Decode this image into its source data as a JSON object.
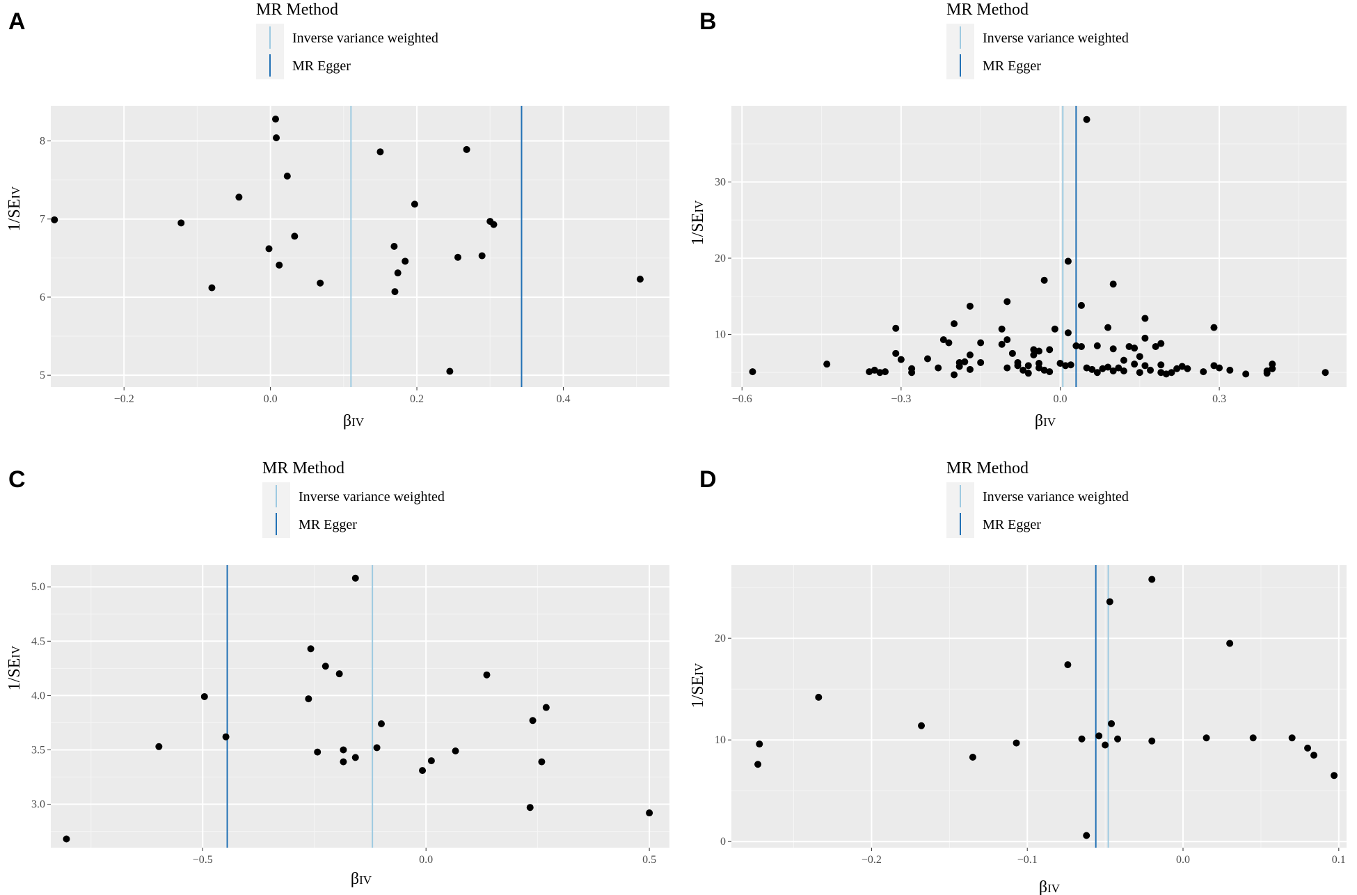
{
  "legend": {
    "title": "MR Method",
    "items": [
      {
        "label": "Inverse variance weighted",
        "color": "#9ecae1"
      },
      {
        "label": "MR Egger",
        "color": "#2171b5"
      }
    ]
  },
  "chart_data": [
    {
      "panel": "A",
      "type": "scatter",
      "xlabel": "βIV",
      "ylabel": "1/SEIV",
      "xlim": [
        -0.3,
        0.545
      ],
      "ylim": [
        4.85,
        8.45
      ],
      "xticks": [
        -0.2,
        0.0,
        0.2,
        0.4
      ],
      "xtick_labels": [
        "−0.2",
        "0.0",
        "0.2",
        "0.4"
      ],
      "yticks": [
        5,
        6,
        7,
        8
      ],
      "ytick_labels": [
        "5",
        "6",
        "7",
        "8"
      ],
      "lines": [
        {
          "method": "Inverse variance weighted",
          "x": 0.11
        },
        {
          "method": "MR Egger",
          "x": 0.343
        }
      ],
      "points": [
        [
          -0.295,
          6.99
        ],
        [
          -0.122,
          6.95
        ],
        [
          -0.08,
          6.12
        ],
        [
          -0.043,
          7.28
        ],
        [
          -0.002,
          6.62
        ],
        [
          0.007,
          8.28
        ],
        [
          0.008,
          8.04
        ],
        [
          0.012,
          6.41
        ],
        [
          0.023,
          7.55
        ],
        [
          0.033,
          6.78
        ],
        [
          0.068,
          6.18
        ],
        [
          0.15,
          7.86
        ],
        [
          0.169,
          6.65
        ],
        [
          0.17,
          6.07
        ],
        [
          0.174,
          6.31
        ],
        [
          0.184,
          6.46
        ],
        [
          0.197,
          7.19
        ],
        [
          0.245,
          5.05
        ],
        [
          0.256,
          6.51
        ],
        [
          0.268,
          7.89
        ],
        [
          0.289,
          6.53
        ],
        [
          0.3,
          6.97
        ],
        [
          0.305,
          6.93
        ],
        [
          0.505,
          6.23
        ]
      ]
    },
    {
      "panel": "B",
      "type": "scatter",
      "xlabel": "βIV",
      "ylabel": "1/SEIV",
      "xlim": [
        -0.62,
        0.54
      ],
      "ylim": [
        3.1,
        40.0
      ],
      "xticks": [
        -0.6,
        -0.3,
        0.0,
        0.3
      ],
      "xtick_labels": [
        "−0.6",
        "−0.3",
        "0.0",
        "0.3"
      ],
      "yticks": [
        10,
        20,
        30
      ],
      "ytick_labels": [
        "10",
        "20",
        "30"
      ],
      "lines": [
        {
          "method": "Inverse variance weighted",
          "x": 0.005
        },
        {
          "method": "MR Egger",
          "x": 0.03
        }
      ],
      "points": [
        [
          -0.58,
          5.1
        ],
        [
          -0.44,
          6.1
        ],
        [
          -0.36,
          5.1
        ],
        [
          -0.35,
          5.3
        ],
        [
          -0.34,
          5.0
        ],
        [
          -0.33,
          5.1
        ],
        [
          -0.31,
          10.8
        ],
        [
          -0.31,
          7.5
        ],
        [
          -0.3,
          6.7
        ],
        [
          -0.28,
          5.0
        ],
        [
          -0.28,
          5.5
        ],
        [
          -0.25,
          6.8
        ],
        [
          -0.23,
          5.6
        ],
        [
          -0.22,
          9.3
        ],
        [
          -0.21,
          8.9
        ],
        [
          -0.2,
          11.4
        ],
        [
          -0.2,
          4.7
        ],
        [
          -0.19,
          6.3
        ],
        [
          -0.19,
          5.8
        ],
        [
          -0.18,
          6.4
        ],
        [
          -0.17,
          13.7
        ],
        [
          -0.17,
          7.3
        ],
        [
          -0.17,
          5.4
        ],
        [
          -0.15,
          8.9
        ],
        [
          -0.15,
          6.3
        ],
        [
          -0.11,
          10.7
        ],
        [
          -0.11,
          8.7
        ],
        [
          -0.1,
          14.3
        ],
        [
          -0.1,
          9.3
        ],
        [
          -0.1,
          5.6
        ],
        [
          -0.09,
          7.5
        ],
        [
          -0.08,
          5.9
        ],
        [
          -0.08,
          6.3
        ],
        [
          -0.07,
          5.3
        ],
        [
          -0.06,
          5.9
        ],
        [
          -0.06,
          4.9
        ],
        [
          -0.05,
          8.0
        ],
        [
          -0.05,
          7.3
        ],
        [
          -0.04,
          7.8
        ],
        [
          -0.04,
          6.2
        ],
        [
          -0.04,
          5.6
        ],
        [
          -0.03,
          17.1
        ],
        [
          -0.03,
          5.3
        ],
        [
          -0.02,
          8.0
        ],
        [
          -0.02,
          5.1
        ],
        [
          -0.01,
          10.7
        ],
        [
          0.0,
          6.2
        ],
        [
          0.01,
          5.9
        ],
        [
          0.015,
          19.6
        ],
        [
          0.015,
          10.2
        ],
        [
          0.02,
          6.0
        ],
        [
          0.03,
          8.5
        ],
        [
          0.04,
          13.8
        ],
        [
          0.04,
          8.4
        ],
        [
          0.05,
          38.2
        ],
        [
          0.05,
          5.6
        ],
        [
          0.06,
          5.4
        ],
        [
          0.07,
          8.5
        ],
        [
          0.07,
          5.0
        ],
        [
          0.08,
          5.5
        ],
        [
          0.09,
          10.9
        ],
        [
          0.09,
          5.7
        ],
        [
          0.1,
          16.6
        ],
        [
          0.1,
          8.1
        ],
        [
          0.1,
          5.2
        ],
        [
          0.11,
          5.6
        ],
        [
          0.12,
          6.6
        ],
        [
          0.12,
          5.2
        ],
        [
          0.13,
          8.4
        ],
        [
          0.14,
          8.2
        ],
        [
          0.14,
          6.1
        ],
        [
          0.15,
          5.0
        ],
        [
          0.15,
          7.1
        ],
        [
          0.16,
          12.1
        ],
        [
          0.16,
          9.5
        ],
        [
          0.16,
          5.9
        ],
        [
          0.17,
          5.3
        ],
        [
          0.18,
          8.4
        ],
        [
          0.19,
          8.8
        ],
        [
          0.19,
          6.0
        ],
        [
          0.19,
          5.0
        ],
        [
          0.2,
          4.8
        ],
        [
          0.21,
          5.0
        ],
        [
          0.22,
          5.5
        ],
        [
          0.23,
          5.8
        ],
        [
          0.24,
          5.5
        ],
        [
          0.27,
          5.1
        ],
        [
          0.29,
          10.9
        ],
        [
          0.29,
          5.9
        ],
        [
          0.3,
          5.6
        ],
        [
          0.32,
          5.3
        ],
        [
          0.35,
          4.8
        ],
        [
          0.39,
          4.9
        ],
        [
          0.39,
          5.2
        ],
        [
          0.4,
          6.1
        ],
        [
          0.4,
          5.5
        ],
        [
          0.5,
          5.0
        ]
      ]
    },
    {
      "panel": "C",
      "type": "scatter",
      "xlabel": "βIV",
      "ylabel": "1/SEIV",
      "xlim": [
        -0.84,
        0.545
      ],
      "ylim": [
        2.6,
        5.2
      ],
      "xticks": [
        -0.5,
        0.0,
        0.5
      ],
      "xtick_labels": [
        "−0.5",
        "0.0",
        "0.5"
      ],
      "yticks": [
        3.0,
        3.5,
        4.0,
        4.5,
        5.0
      ],
      "ytick_labels": [
        "3.0",
        "3.5",
        "4.0",
        "4.5",
        "5.0"
      ],
      "lines": [
        {
          "method": "Inverse variance weighted",
          "x": -0.12
        },
        {
          "method": "MR Egger",
          "x": -0.445
        }
      ],
      "points": [
        [
          -0.805,
          2.68
        ],
        [
          -0.598,
          3.53
        ],
        [
          -0.496,
          3.99
        ],
        [
          -0.448,
          3.62
        ],
        [
          -0.263,
          3.97
        ],
        [
          -0.258,
          4.43
        ],
        [
          -0.243,
          3.48
        ],
        [
          -0.225,
          4.27
        ],
        [
          -0.194,
          4.2
        ],
        [
          -0.185,
          3.5
        ],
        [
          -0.185,
          3.39
        ],
        [
          -0.158,
          3.43
        ],
        [
          -0.158,
          5.08
        ],
        [
          -0.1,
          3.74
        ],
        [
          -0.11,
          3.52
        ],
        [
          -0.008,
          3.31
        ],
        [
          0.012,
          3.4
        ],
        [
          0.066,
          3.49
        ],
        [
          0.136,
          4.19
        ],
        [
          0.233,
          2.97
        ],
        [
          0.239,
          3.77
        ],
        [
          0.259,
          3.39
        ],
        [
          0.269,
          3.89
        ],
        [
          0.5,
          2.92
        ]
      ]
    },
    {
      "panel": "D",
      "type": "scatter",
      "xlabel": "βIV",
      "ylabel": "1/SEIV",
      "xlim": [
        -0.29,
        0.105
      ],
      "ylim": [
        -0.6,
        27.2
      ],
      "xticks": [
        -0.2,
        -0.1,
        0.0,
        0.1
      ],
      "xtick_labels": [
        "−0.2",
        "−0.1",
        "0.0",
        "0.1"
      ],
      "yticks": [
        0,
        10,
        20
      ],
      "ytick_labels": [
        "0",
        "10",
        "20"
      ],
      "lines": [
        {
          "method": "Inverse variance weighted",
          "x": -0.048
        },
        {
          "method": "MR Egger",
          "x": -0.056
        }
      ],
      "points": [
        [
          -0.272,
          9.6
        ],
        [
          -0.273,
          7.6
        ],
        [
          -0.234,
          14.2
        ],
        [
          -0.168,
          11.4
        ],
        [
          -0.135,
          8.3
        ],
        [
          -0.107,
          9.7
        ],
        [
          -0.074,
          17.4
        ],
        [
          -0.065,
          10.1
        ],
        [
          -0.062,
          0.6
        ],
        [
          -0.054,
          10.4
        ],
        [
          -0.05,
          9.5
        ],
        [
          -0.047,
          23.6
        ],
        [
          -0.046,
          11.6
        ],
        [
          -0.042,
          10.1
        ],
        [
          -0.02,
          25.8
        ],
        [
          -0.02,
          9.9
        ],
        [
          0.015,
          10.2
        ],
        [
          0.03,
          19.5
        ],
        [
          0.045,
          10.2
        ],
        [
          0.07,
          10.2
        ],
        [
          0.08,
          9.2
        ],
        [
          0.084,
          8.5
        ],
        [
          0.097,
          6.5
        ]
      ]
    }
  ]
}
